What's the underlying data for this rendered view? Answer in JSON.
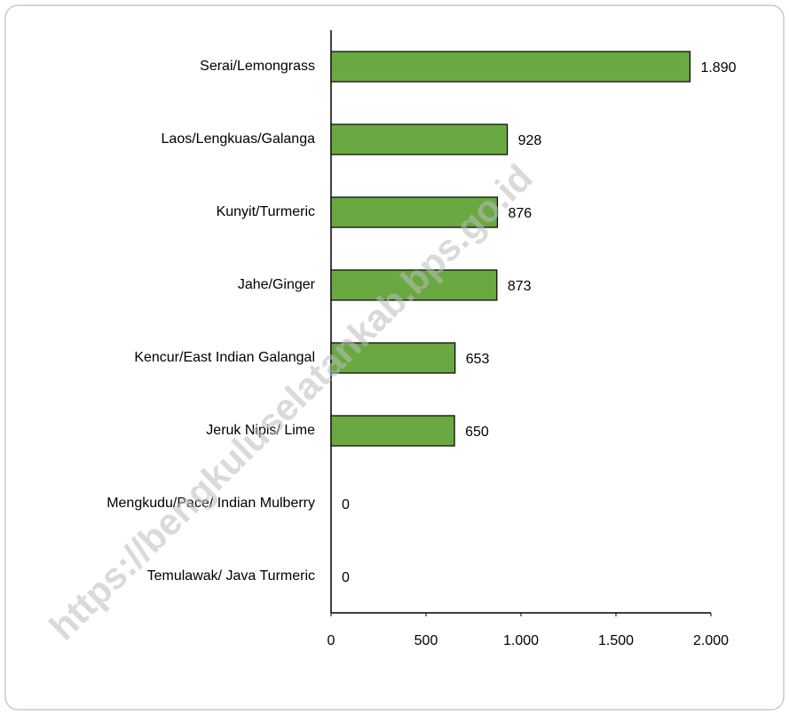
{
  "chart_data": {
    "type": "bar",
    "orientation": "horizontal",
    "categories": [
      "Serai/Lemongrass",
      "Laos/Lengkuas/Galanga",
      "Kunyit/Turmeric",
      "Jahe/Ginger",
      "Kencur/East Indian Galangal",
      "Jeruk Nipis/ Lime",
      "Mengkudu/Pace/ Indian Mulberry",
      "Temulawak/ Java Turmeric"
    ],
    "values": [
      1890,
      928,
      876,
      873,
      653,
      650,
      0,
      0
    ],
    "value_labels": [
      "1.890",
      "928",
      "876",
      "873",
      "653",
      "650",
      "0",
      "0"
    ],
    "color": "#6aa842",
    "xlim": [
      0,
      2000
    ],
    "xticks": [
      0,
      500,
      {
        "value": 1000,
        "label": "1.000"
      },
      {
        "value": 1500,
        "label": "1.500"
      },
      {
        "value": 2000,
        "label": "2.000"
      }
    ],
    "grid": false,
    "watermark": "https://bengkuluselatankab.bps.go.id"
  }
}
